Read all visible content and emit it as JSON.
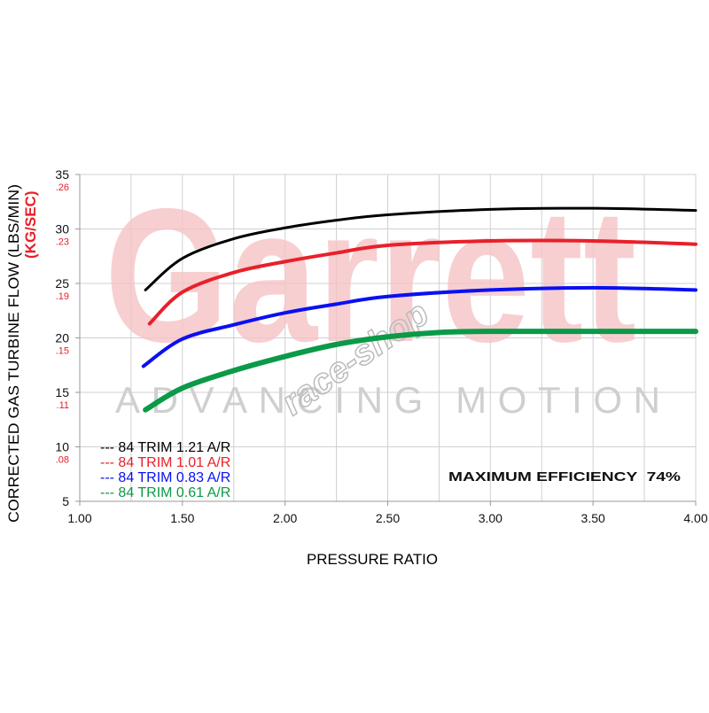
{
  "chart_data": {
    "type": "line",
    "title": "",
    "xlabel": "PRESSURE RATIO",
    "ylabel": "CORRECTED GAS TURBINE FLOW (LBS/MIN)",
    "ylabel_secondary": "(KG/SEC)",
    "xlim": [
      1.0,
      4.0
    ],
    "ylim": [
      5,
      35
    ],
    "grid": true,
    "x_ticks": [
      "1.00",
      "1.50",
      "2.00",
      "2.50",
      "3.00",
      "3.50",
      "4.00"
    ],
    "y_ticks": [
      "35",
      "30",
      "25",
      "20",
      "15",
      "10",
      "5"
    ],
    "y_ticks_secondary": [
      ".26",
      ".23",
      ".19",
      ".15",
      ".11",
      ".08"
    ],
    "legend_placement": "bottom-left",
    "annotation": "MAXIMUM EFFICIENCY  74%",
    "colors": {
      "axis_secondary": "#e8202a",
      "watermark_logo": "#f6c4c6",
      "watermark_tagline": "#cfcfcf"
    },
    "watermark": {
      "logo": "Garrett",
      "tagline": "ADVANCING MOTION",
      "overlay": "race-shop"
    },
    "series": [
      {
        "name": "--- 84 TRIM 1.21 A/R",
        "color": "#000000",
        "x": [
          1.32,
          1.5,
          1.75,
          2.0,
          2.25,
          2.5,
          3.0,
          3.5,
          4.0
        ],
        "y": [
          24.4,
          27.3,
          29.1,
          30.1,
          30.8,
          31.3,
          31.8,
          31.9,
          31.7
        ]
      },
      {
        "name": "--- 84 TRIM 1.01 A/R",
        "color": "#e8202a",
        "x": [
          1.34,
          1.5,
          1.75,
          2.0,
          2.25,
          2.5,
          3.0,
          3.5,
          4.0
        ],
        "y": [
          21.3,
          24.2,
          26.0,
          27.0,
          27.8,
          28.5,
          28.9,
          28.9,
          28.6
        ]
      },
      {
        "name": "--- 84 TRIM 0.83 A/R",
        "color": "#0a10f0",
        "x": [
          1.31,
          1.5,
          1.75,
          2.0,
          2.25,
          2.5,
          3.0,
          3.5,
          4.0
        ],
        "y": [
          17.4,
          19.9,
          21.2,
          22.3,
          23.1,
          23.8,
          24.4,
          24.6,
          24.4
        ]
      },
      {
        "name": "--- 84 TRIM 0.61 A/R",
        "color": "#0a9a48",
        "x": [
          1.32,
          1.5,
          1.75,
          2.0,
          2.25,
          2.5,
          2.75,
          3.0,
          3.5,
          4.0
        ],
        "y": [
          13.4,
          15.4,
          17.0,
          18.3,
          19.4,
          20.1,
          20.5,
          20.6,
          20.6,
          20.6
        ]
      }
    ]
  }
}
